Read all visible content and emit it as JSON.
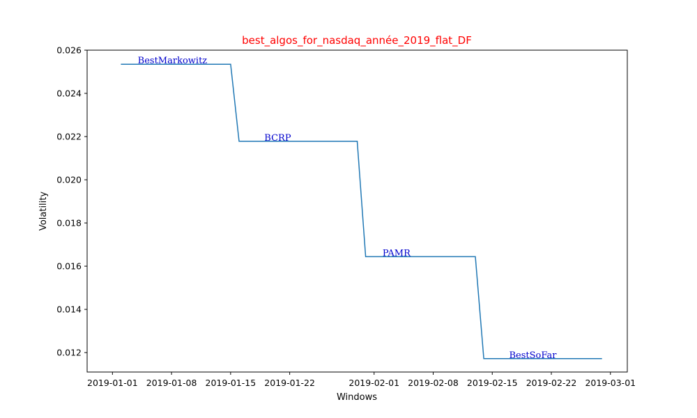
{
  "chart_data": {
    "type": "line",
    "title": "best_algos_for_nasdaq_année_2019_flat_DF",
    "xlabel": "Windows",
    "ylabel": "Volatility",
    "x_axis_type": "date",
    "xlim": [
      "2018-12-29",
      "2019-03-03"
    ],
    "ylim": [
      0.0111,
      0.026
    ],
    "xticks": [
      "2019-01-01",
      "2019-01-08",
      "2019-01-15",
      "2019-01-22",
      "2019-02-01",
      "2019-02-08",
      "2019-02-15",
      "2019-02-22",
      "2019-03-01"
    ],
    "yticks": [
      "0.012",
      "0.014",
      "0.016",
      "0.018",
      "0.020",
      "0.022",
      "0.024",
      "0.026"
    ],
    "grid": false,
    "series": [
      {
        "color": "#1f77b4",
        "points": [
          {
            "x": "2019-01-02",
            "y": 0.02535
          },
          {
            "x": "2019-01-15",
            "y": 0.02535
          },
          {
            "x": "2019-01-16",
            "y": 0.02178
          },
          {
            "x": "2019-01-30",
            "y": 0.02178
          },
          {
            "x": "2019-01-31",
            "y": 0.01644
          },
          {
            "x": "2019-02-13",
            "y": 0.01644
          },
          {
            "x": "2019-02-14",
            "y": 0.01172
          },
          {
            "x": "2019-02-28",
            "y": 0.01172
          }
        ]
      }
    ],
    "annotations": [
      {
        "text": "BestMarkowitz",
        "x": "2019-01-04",
        "y": 0.02535
      },
      {
        "text": "BCRP",
        "x": "2019-01-19",
        "y": 0.02178
      },
      {
        "text": "PAMR",
        "x": "2019-02-02",
        "y": 0.01644
      },
      {
        "text": "BestSoFar",
        "x": "2019-02-17",
        "y": 0.01172
      }
    ],
    "colors": {
      "title": "#ff0000",
      "annotation": "#0000cd",
      "line": "#1f77b4"
    }
  }
}
